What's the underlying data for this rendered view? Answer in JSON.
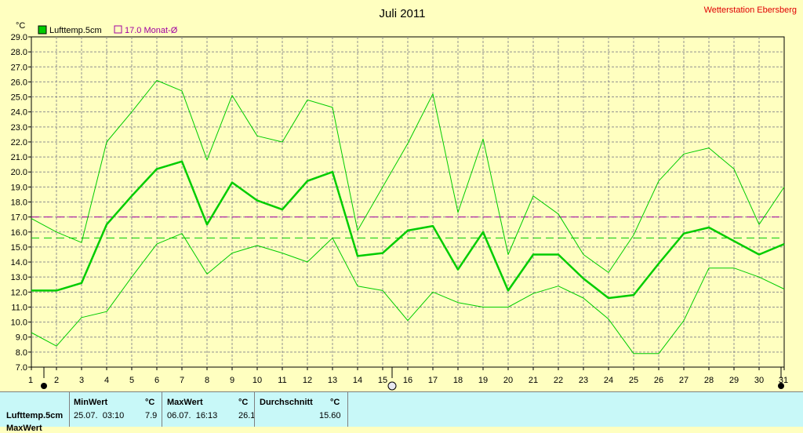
{
  "title": "Juli 2011",
  "station": "Wetterstation Ebersberg",
  "unit": "°C",
  "legend": [
    {
      "label": "Lufttemp.5cm",
      "color": "#00cc00",
      "filled": true
    },
    {
      "label": "17.0 Monat-Ø",
      "color": "#a000a0",
      "filled": false
    }
  ],
  "chart_data": {
    "type": "line",
    "title": "Juli 2011",
    "ylabel": "°C",
    "ylim": [
      7.0,
      29.0
    ],
    "ystep": 1.0,
    "x": [
      1,
      2,
      3,
      4,
      5,
      6,
      7,
      8,
      9,
      10,
      11,
      12,
      13,
      14,
      15,
      16,
      17,
      18,
      19,
      20,
      21,
      22,
      23,
      24,
      25,
      26,
      27,
      28,
      29,
      30,
      31
    ],
    "series": [
      {
        "name": "Lufttemp.5cm",
        "role": "mean",
        "color": "#00cc00",
        "values": [
          12.1,
          12.1,
          12.6,
          16.5,
          18.4,
          20.2,
          20.7,
          16.5,
          19.3,
          18.1,
          17.5,
          19.4,
          20.0,
          14.4,
          14.6,
          16.1,
          16.4,
          13.5,
          16.0,
          12.1,
          14.5,
          14.5,
          12.9,
          11.6,
          11.8,
          13.9,
          15.9,
          16.3,
          15.4,
          14.5,
          15.2
        ]
      },
      {
        "role": "max",
        "color": "#00cc00",
        "values": [
          16.9,
          16.0,
          15.3,
          22.0,
          24.0,
          26.1,
          25.4,
          20.8,
          25.1,
          22.4,
          22.0,
          24.8,
          24.3,
          16.1,
          19.0,
          21.9,
          25.2,
          17.3,
          22.2,
          14.5,
          18.4,
          17.2,
          14.5,
          13.3,
          15.8,
          19.4,
          21.2,
          21.6,
          20.2,
          16.5,
          19.0
        ]
      },
      {
        "role": "min",
        "color": "#00cc00",
        "values": [
          9.3,
          8.4,
          10.3,
          10.7,
          13.0,
          15.2,
          15.9,
          13.2,
          14.6,
          15.1,
          14.6,
          14.0,
          15.6,
          12.4,
          12.1,
          10.1,
          12.0,
          11.3,
          11.0,
          11.0,
          11.9,
          12.4,
          11.6,
          10.2,
          7.9,
          7.9,
          10.1,
          13.6,
          13.6,
          13.0,
          12.2
        ]
      }
    ],
    "reference_lines": [
      {
        "label": "17.0 Monat-Ø",
        "value": 17.0,
        "color": "#a000a0"
      },
      {
        "value": 15.6,
        "color": "#00cc00"
      }
    ],
    "grid": true
  },
  "stats": {
    "row_label": "Lufttemp.5cm",
    "row_label_2": "MaxWert",
    "min_header": "MinWert",
    "max_header": "MaxWert",
    "avg_header": "Durchschnitt",
    "unit": "°C",
    "min_time": "25.07.  03:10",
    "min_value": "7.9",
    "max_time": "06.07.  16:13",
    "max_value": "26.1",
    "avg_value": "15.60"
  }
}
